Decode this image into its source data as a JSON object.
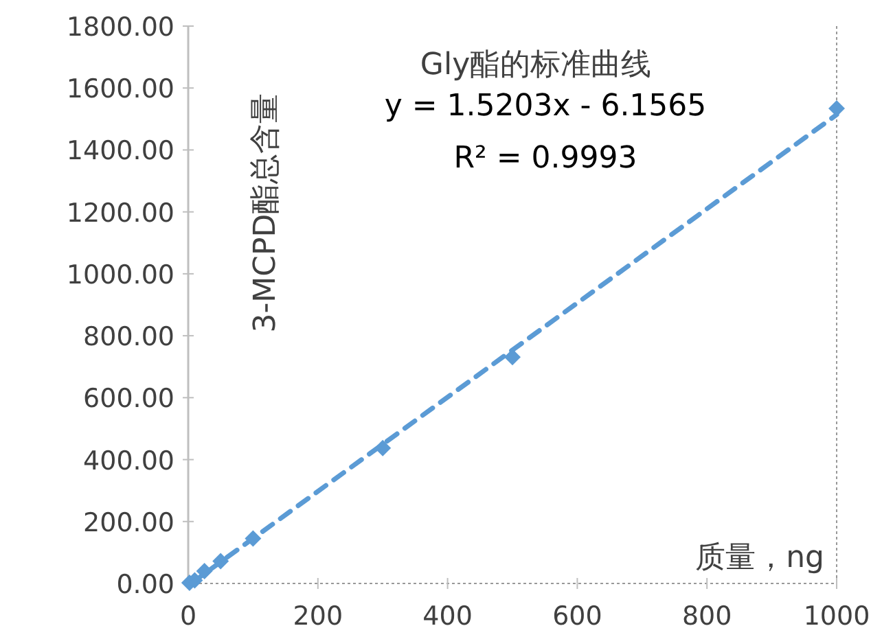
{
  "chart_data": {
    "type": "scatter",
    "title": "Gly酯的标准曲线",
    "xlabel": "质量，ng",
    "ylabel": "3-MCPD酯总含量",
    "annotations": [
      "y = 1.5203x - 6.1565",
      "R² = 0.9993"
    ],
    "series": [
      {
        "type": "scatter",
        "color": "#5b9bd5",
        "marker": "diamond",
        "x": [
          2,
          10,
          25,
          50,
          100,
          300,
          500,
          1000
        ],
        "values": [
          2,
          10,
          40,
          72,
          145,
          437,
          731,
          1534
        ]
      },
      {
        "type": "line",
        "color": "#5b9bd5",
        "line_style": "dashed",
        "x": [
          5,
          1000
        ],
        "values": [
          1,
          1514
        ]
      }
    ],
    "xlim": [
      0,
      1000
    ],
    "xticks": [
      0,
      200,
      400,
      600,
      800,
      1000
    ],
    "ylim": [
      0,
      1800
    ],
    "yticks": [
      {
        "value": 0,
        "label": "0.00"
      },
      {
        "value": 200,
        "label": "200.00"
      },
      {
        "value": 400,
        "label": "400.00"
      },
      {
        "value": 600,
        "label": "600.00"
      },
      {
        "value": 800,
        "label": "800.00"
      },
      {
        "value": 1000,
        "label": "1000.00"
      },
      {
        "value": 1200,
        "label": "1200.00"
      },
      {
        "value": 1400,
        "label": "1400.00"
      },
      {
        "value": 1600,
        "label": "1600.00"
      },
      {
        "value": 1800,
        "label": "1800.00"
      }
    ],
    "grid": false
  }
}
